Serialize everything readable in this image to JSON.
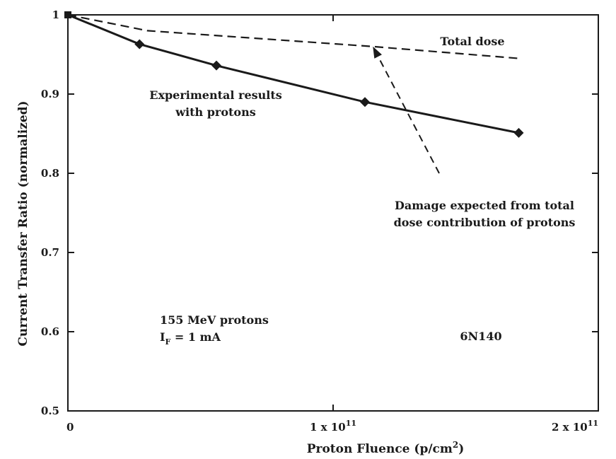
{
  "chart_data": {
    "type": "line",
    "title": "",
    "xlabel": "Proton Fluence (p/cm",
    "xlabel_sup": "2",
    "xlabel_close": ")",
    "ylabel": "Current Transfer Ratio (normalized)",
    "xlim": [
      0,
      200000000000.0
    ],
    "ylim": [
      0.5,
      1.0
    ],
    "x_ticks": [
      {
        "value": 0,
        "label": "0"
      },
      {
        "value": 100000000000.0,
        "label": "1 x 10",
        "sup": "11"
      },
      {
        "value": 200000000000.0,
        "label": "2 x 10",
        "sup": "11"
      }
    ],
    "y_ticks": [
      {
        "value": 0.5,
        "label": "0.5"
      },
      {
        "value": 0.6,
        "label": "0.6"
      },
      {
        "value": 0.7,
        "label": "0.7"
      },
      {
        "value": 0.8,
        "label": "0.8"
      },
      {
        "value": 0.9,
        "label": "0.9"
      },
      {
        "value": 1.0,
        "label": "1"
      }
    ],
    "grid": false,
    "series": [
      {
        "name": "Experimental results with protons",
        "style": "solid",
        "marker": "diamond",
        "x": [
          0,
          27000000000.0,
          56000000000.0,
          112000000000.0,
          170000000000.0
        ],
        "y": [
          1.0,
          0.963,
          0.936,
          0.89,
          0.851
        ]
      },
      {
        "name": "Total dose",
        "style": "dashed",
        "marker": "none",
        "x": [
          0,
          30000000000.0,
          115000000000.0,
          170000000000.0
        ],
        "y": [
          1.0,
          0.98,
          0.96,
          0.945
        ]
      }
    ],
    "annotations": {
      "experimental_line1": "Experimental results",
      "experimental_line2": "with protons",
      "total_dose": "Total dose",
      "damage_line1": "Damage expected from total",
      "damage_line2": "dose contribution of protons",
      "protons_line1": "155 MeV protons",
      "current_prefix": "I",
      "current_sub": "F",
      "current_suffix": " = 1 mA",
      "device": "6N140"
    },
    "arrow": {
      "from": [
        140000000000.0,
        0.8
      ],
      "to": [
        115000000000.0,
        0.96
      ]
    },
    "colors": {
      "line": "#1a1a1a",
      "background": "#ffffff"
    }
  }
}
